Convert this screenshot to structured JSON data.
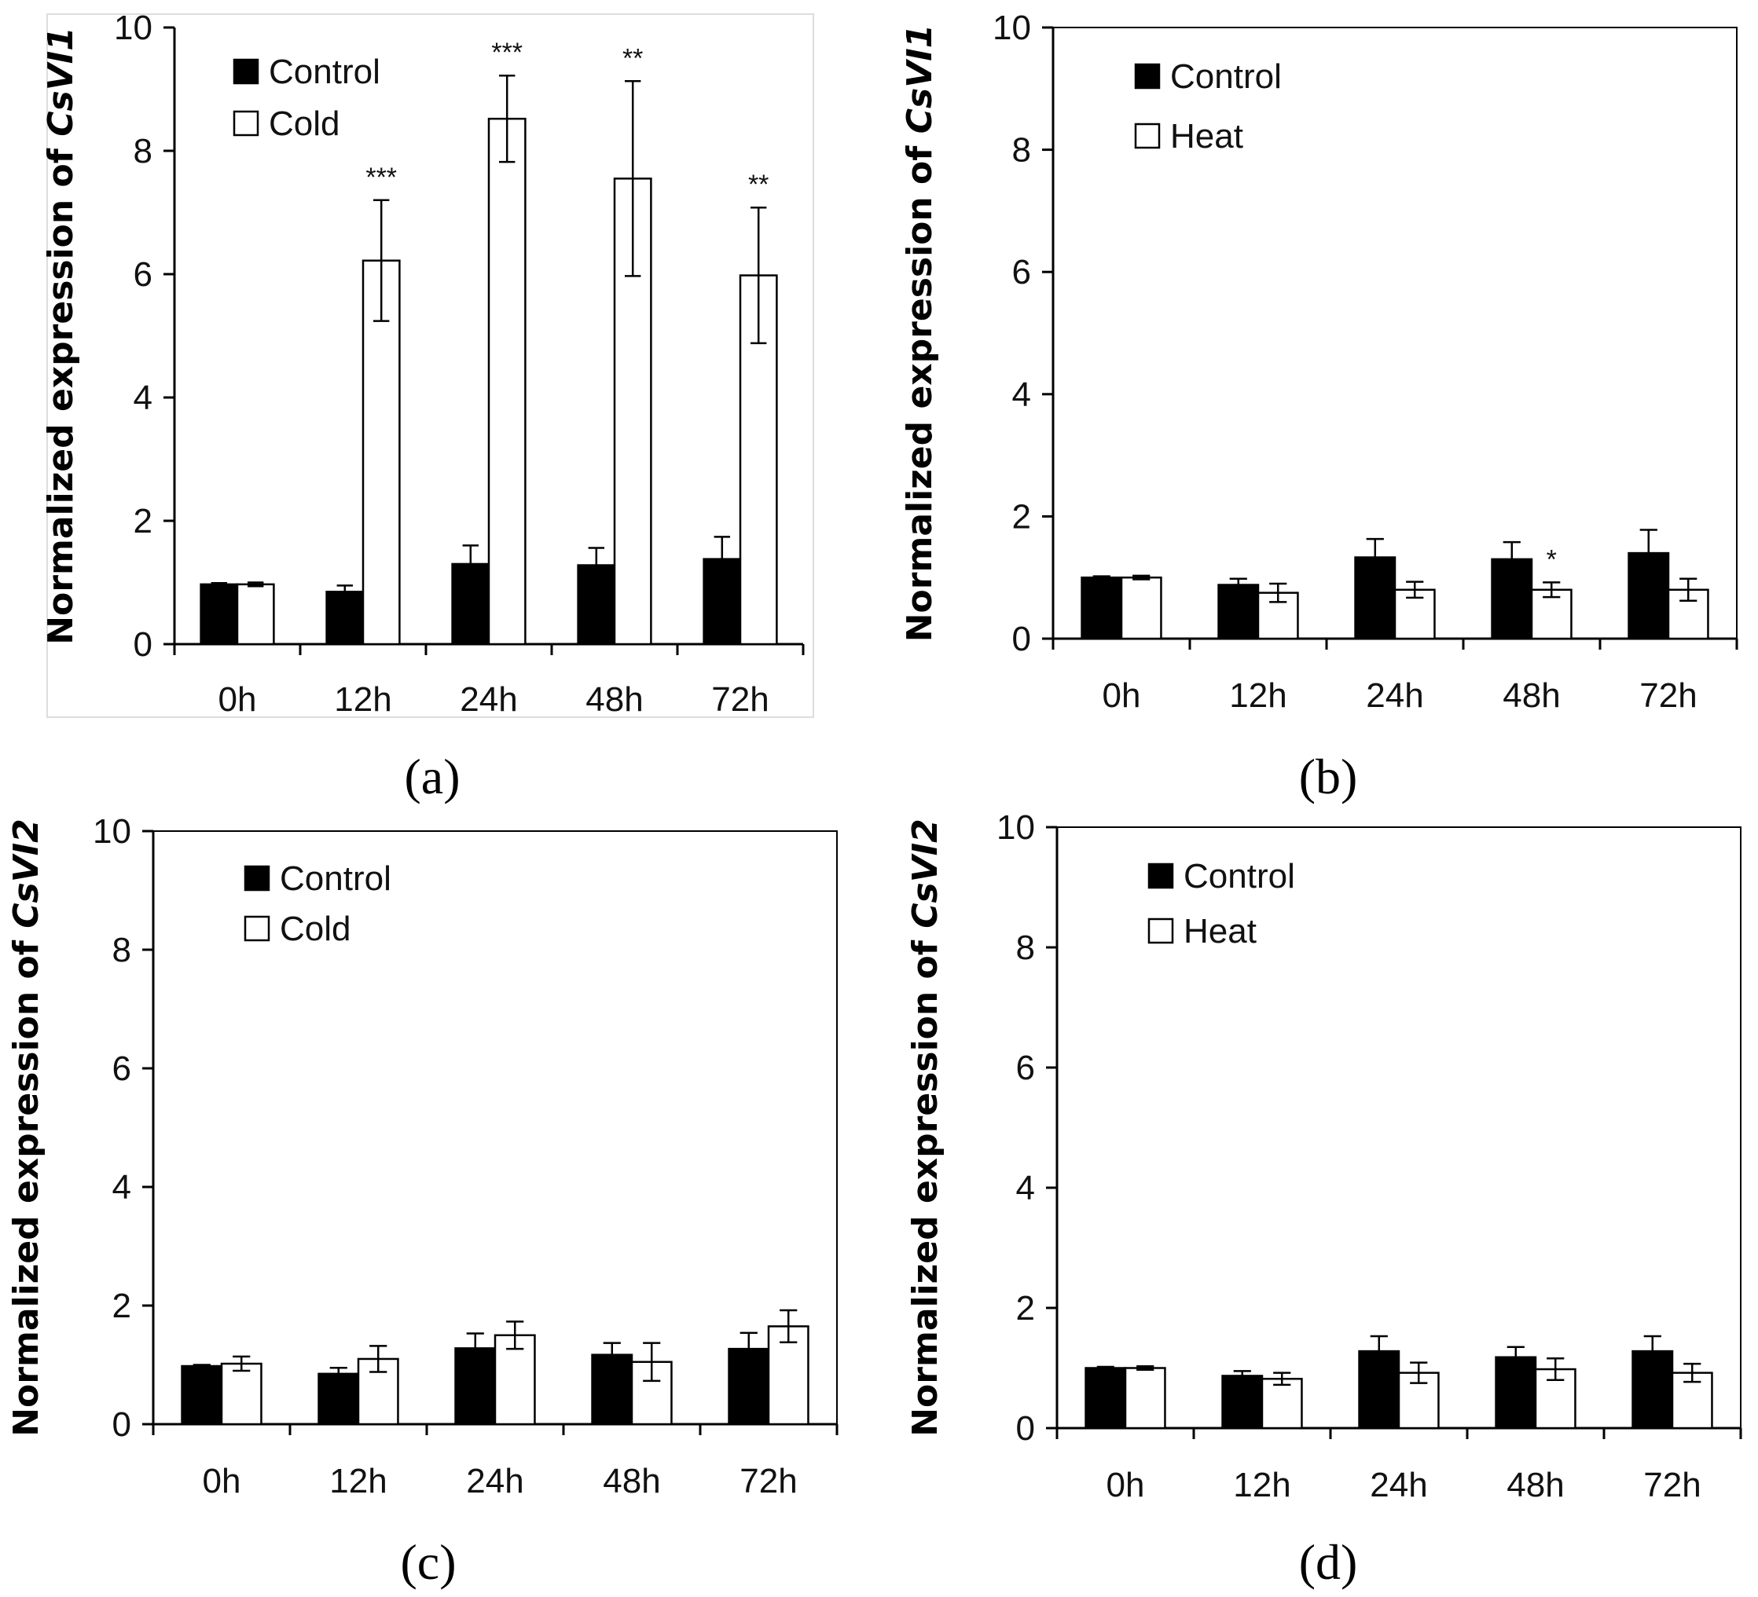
{
  "chart_data": [
    {
      "panel": "(a)",
      "type": "bar",
      "ylabel_prefix": "Normalized expression of ",
      "ylabel_gene": "CsVI1",
      "categories": [
        "0h",
        "12h",
        "24h",
        "48h",
        "72h"
      ],
      "ylim": [
        0,
        10
      ],
      "yticks": [
        "0",
        "2",
        "4",
        "6",
        "8",
        "10"
      ],
      "series": [
        {
          "name": "Control",
          "fill": "#000000",
          "values": [
            0.97,
            0.85,
            1.3,
            1.28,
            1.38
          ],
          "errors": [
            0.02,
            0.1,
            0.3,
            0.28,
            0.36
          ]
        },
        {
          "name": "Cold",
          "fill": "#ffffff",
          "values": [
            0.97,
            6.22,
            8.52,
            7.55,
            5.98
          ],
          "errors": [
            0.03,
            0.98,
            0.7,
            1.58,
            1.1
          ]
        }
      ],
      "significance": [
        "",
        "***",
        "***",
        "**",
        "**"
      ]
    },
    {
      "panel": "(b)",
      "type": "bar",
      "ylabel_prefix": "Normalized expression of ",
      "ylabel_gene": "CsVI1",
      "categories": [
        "0h",
        "12h",
        "24h",
        "48h",
        "72h"
      ],
      "ylim": [
        0,
        10
      ],
      "yticks": [
        "0",
        "2",
        "4",
        "6",
        "8",
        "10"
      ],
      "series": [
        {
          "name": "Control",
          "fill": "#000000",
          "values": [
            1.0,
            0.88,
            1.33,
            1.3,
            1.4
          ],
          "errors": [
            0.02,
            0.1,
            0.3,
            0.28,
            0.38
          ]
        },
        {
          "name": "Heat",
          "fill": "#ffffff",
          "values": [
            1.0,
            0.75,
            0.8,
            0.8,
            0.8
          ],
          "errors": [
            0.03,
            0.15,
            0.13,
            0.12,
            0.18
          ]
        }
      ],
      "significance": [
        "",
        "",
        "",
        "*",
        ""
      ]
    },
    {
      "panel": "(c)",
      "type": "bar",
      "ylabel_prefix": "Normalized expression of ",
      "ylabel_gene": "CsVI2",
      "categories": [
        "0h",
        "12h",
        "24h",
        "48h",
        "72h"
      ],
      "ylim": [
        0,
        10
      ],
      "yticks": [
        "0",
        "2",
        "4",
        "6",
        "8",
        "10"
      ],
      "series": [
        {
          "name": "Control",
          "fill": "#000000",
          "values": [
            0.98,
            0.85,
            1.28,
            1.17,
            1.27
          ],
          "errors": [
            0.02,
            0.1,
            0.25,
            0.2,
            0.27
          ]
        },
        {
          "name": "Cold",
          "fill": "#ffffff",
          "values": [
            1.02,
            1.1,
            1.5,
            1.05,
            1.65
          ],
          "errors": [
            0.12,
            0.22,
            0.23,
            0.32,
            0.27
          ]
        }
      ],
      "significance": [
        "",
        "",
        "",
        "",
        ""
      ]
    },
    {
      "panel": "(d)",
      "type": "bar",
      "ylabel_prefix": "Normalized expression of ",
      "ylabel_gene": "CsVI2",
      "categories": [
        "0h",
        "12h",
        "24h",
        "48h",
        "72h"
      ],
      "ylim": [
        0,
        10
      ],
      "yticks": [
        "0",
        "2",
        "4",
        "6",
        "8",
        "10"
      ],
      "series": [
        {
          "name": "Control",
          "fill": "#000000",
          "values": [
            1.0,
            0.87,
            1.28,
            1.18,
            1.28
          ],
          "errors": [
            0.02,
            0.08,
            0.25,
            0.17,
            0.25
          ]
        },
        {
          "name": "Heat",
          "fill": "#ffffff",
          "values": [
            1.0,
            0.82,
            0.92,
            0.98,
            0.92
          ],
          "errors": [
            0.03,
            0.1,
            0.17,
            0.18,
            0.15
          ]
        }
      ],
      "significance": [
        "",
        "",
        "",
        "",
        ""
      ]
    }
  ]
}
